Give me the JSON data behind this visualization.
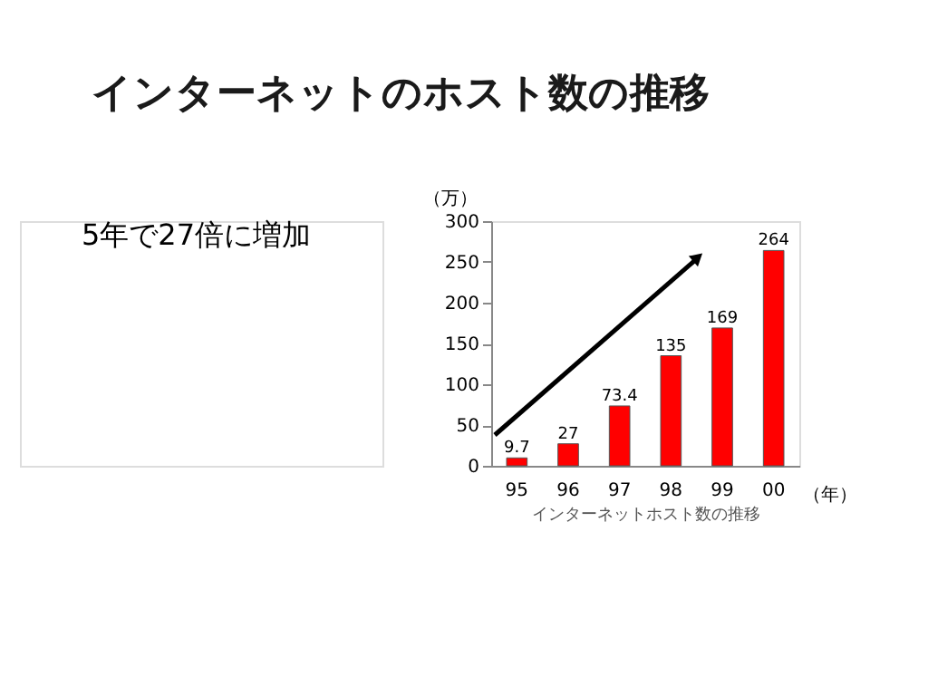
{
  "chart_data": {
    "type": "bar",
    "title": "インターネットのホスト数の推移",
    "categories": [
      "95",
      "96",
      "97",
      "98",
      "99",
      "00"
    ],
    "values": [
      9.7,
      27,
      73.4,
      135,
      169,
      264
    ],
    "color": "#ff0000",
    "ylim": [
      0,
      300
    ],
    "yticks": [
      0,
      50,
      100,
      150,
      200,
      250,
      300
    ],
    "ylabel": "（万）",
    "xlabel": "インターネットホスト数の推移",
    "data_labels": true,
    "grid": false,
    "legend": false,
    "annotations": [
      "5年で27倍に増加",
      "（年）"
    ]
  }
}
